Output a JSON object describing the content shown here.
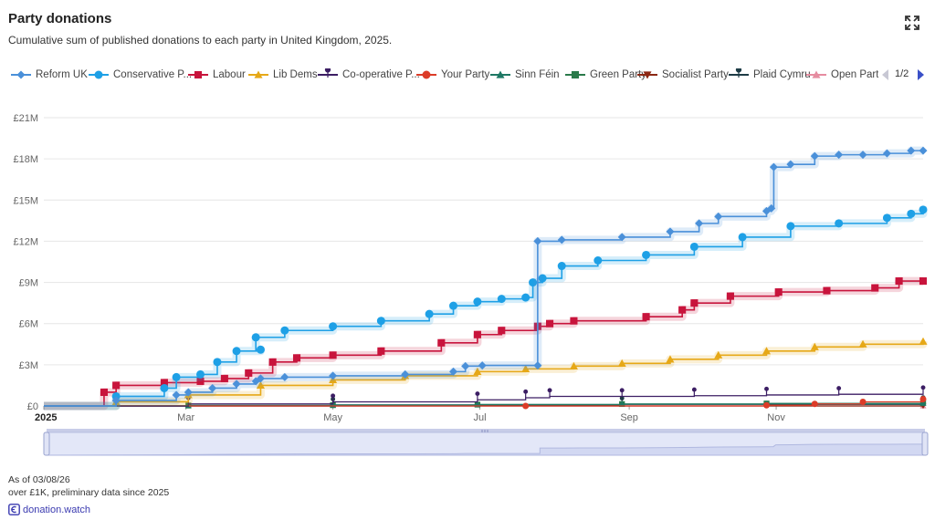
{
  "title": "Party donations",
  "subtitle": "Cumulative sum of published donations to each party in United Kingdom, 2025.",
  "expand_icon": "fullscreen-icon",
  "legend": {
    "page_label": "1/2",
    "prev_icon": "triangle-left-icon",
    "next_icon": "triangle-right-icon"
  },
  "footer": {
    "as_of": "As of 03/08/26",
    "note": "over £1K, preliminary data since 2025",
    "link_text": "donation.watch",
    "link_icon": "donation-watch-logo-icon"
  },
  "chart_data": {
    "type": "line",
    "title": "Party donations",
    "xlabel": "",
    "ylabel": "",
    "x_unit": "days since 1 Jan 2025",
    "xlim": [
      0,
      365
    ],
    "ylim": [
      0,
      21000000
    ],
    "y_ticks": [
      0,
      3000000,
      6000000,
      9000000,
      12000000,
      15000000,
      18000000,
      21000000
    ],
    "y_tick_labels": [
      "£0",
      "£3M",
      "£6M",
      "£9M",
      "£12M",
      "£15M",
      "£18M",
      "£21M"
    ],
    "x_ticks": [
      0,
      59,
      120,
      181,
      243,
      304
    ],
    "x_tick_labels": [
      "2025",
      "Mar",
      "May",
      "Jul",
      "Sep",
      "Nov"
    ],
    "grid": true,
    "legend_position": "top",
    "zoom_range": [
      0,
      1
    ],
    "series": [
      {
        "name": "Reform UK",
        "color": "#4a90d9",
        "marker": "diamond",
        "x": [
          0,
          30,
          55,
          60,
          70,
          80,
          88,
          90,
          100,
          120,
          150,
          170,
          175,
          182,
          205,
          205,
          215,
          240,
          260,
          272,
          280,
          300,
          302,
          303,
          310,
          320,
          330,
          340,
          350,
          360,
          365
        ],
        "y": [
          0,
          400000,
          800000,
          1000000,
          1300000,
          1600000,
          1800000,
          2000000,
          2100000,
          2200000,
          2300000,
          2500000,
          2900000,
          2950000,
          2950000,
          12000000,
          12100000,
          12300000,
          12700000,
          13300000,
          13800000,
          14200000,
          14400000,
          17400000,
          17600000,
          18200000,
          18300000,
          18300000,
          18400000,
          18600000,
          18600000
        ]
      },
      {
        "name": "Conservative P...",
        "color": "#1ea0e6",
        "marker": "circle",
        "x": [
          0,
          30,
          50,
          55,
          65,
          72,
          80,
          90,
          88,
          100,
          120,
          140,
          160,
          170,
          180,
          190,
          200,
          203,
          207,
          215,
          230,
          250,
          270,
          290,
          310,
          330,
          350,
          360,
          365
        ],
        "y": [
          0,
          700000,
          1300000,
          2100000,
          2300000,
          3200000,
          4000000,
          4100000,
          5000000,
          5500000,
          5800000,
          6200000,
          6700000,
          7300000,
          7600000,
          7800000,
          7900000,
          9000000,
          9300000,
          10200000,
          10600000,
          11000000,
          11600000,
          12300000,
          13100000,
          13300000,
          13700000,
          14000000,
          14300000
        ]
      },
      {
        "name": "Labour",
        "color": "#c8143c",
        "marker": "square",
        "x": [
          0,
          25,
          30,
          50,
          65,
          75,
          85,
          95,
          105,
          120,
          140,
          165,
          180,
          190,
          205,
          210,
          220,
          250,
          265,
          270,
          285,
          305,
          325,
          345,
          355,
          365
        ],
        "y": [
          0,
          1000000,
          1500000,
          1700000,
          1800000,
          2000000,
          2400000,
          3200000,
          3500000,
          3700000,
          4000000,
          4600000,
          5200000,
          5500000,
          5800000,
          6000000,
          6200000,
          6500000,
          7000000,
          7500000,
          8000000,
          8300000,
          8400000,
          8600000,
          9100000,
          9100000
        ]
      },
      {
        "name": "Lib Dems",
        "color": "#e6a817",
        "marker": "triangle",
        "x": [
          0,
          30,
          60,
          90,
          120,
          150,
          180,
          200,
          220,
          240,
          260,
          280,
          300,
          320,
          340,
          365
        ],
        "y": [
          0,
          300000,
          800000,
          1500000,
          1900000,
          2200000,
          2500000,
          2700000,
          2900000,
          3100000,
          3400000,
          3700000,
          4000000,
          4300000,
          4500000,
          4700000
        ]
      },
      {
        "name": "Co-operative P...",
        "color": "#3c1e64",
        "marker": "pin",
        "x": [
          0,
          60,
          120,
          180,
          200,
          210,
          240,
          270,
          300,
          330,
          365
        ],
        "y": [
          0,
          150000,
          300000,
          450000,
          600000,
          700000,
          700000,
          750000,
          800000,
          850000,
          900000
        ]
      },
      {
        "name": "Your Party",
        "color": "#dc3c28",
        "marker": "circle",
        "x": [
          0,
          200,
          300,
          320,
          340,
          365
        ],
        "y": [
          0,
          0,
          50000,
          150000,
          300000,
          500000
        ]
      },
      {
        "name": "Sinn Féin",
        "color": "#1e7864",
        "marker": "triangle",
        "x": [
          0,
          60,
          120,
          180,
          240,
          300,
          365
        ],
        "y": [
          0,
          40000,
          80000,
          110000,
          140000,
          170000,
          200000
        ]
      },
      {
        "name": "Green Party",
        "color": "#2a7a4a",
        "marker": "square",
        "x": [
          0,
          60,
          120,
          180,
          240,
          300,
          365
        ],
        "y": [
          0,
          30000,
          60000,
          100000,
          140000,
          180000,
          220000
        ]
      },
      {
        "name": "Socialist Party",
        "color": "#8c2814",
        "marker": "triangle-down",
        "x": [
          0,
          365
        ],
        "y": [
          0,
          20000
        ]
      },
      {
        "name": "Plaid Cymru",
        "color": "#1e3c46",
        "marker": "pin",
        "x": [
          0,
          120,
          240,
          365
        ],
        "y": [
          0,
          60000,
          120000,
          180000
        ]
      },
      {
        "name": "Open Part",
        "color": "#e68ca0",
        "marker": "triangle",
        "x": [
          0,
          365
        ],
        "y": [
          0,
          10000
        ]
      }
    ]
  }
}
